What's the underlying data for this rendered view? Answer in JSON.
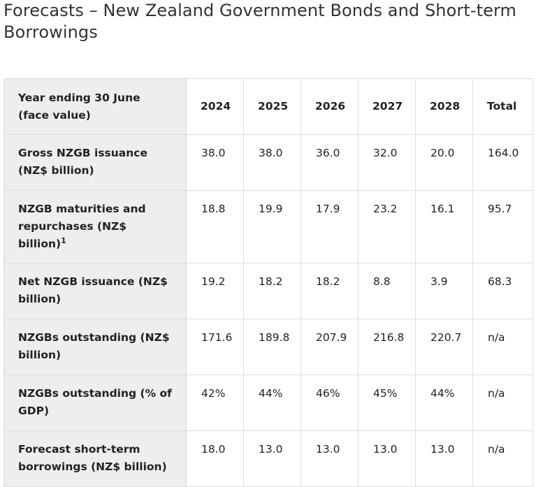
{
  "page": {
    "title": "Forecasts – New Zealand Government Bonds and Short-term Borrowings"
  },
  "table": {
    "header": {
      "label": "Year ending 30 June (face value)",
      "years": [
        "2024",
        "2025",
        "2026",
        "2027",
        "2028",
        "Total"
      ]
    },
    "rows": [
      {
        "label": "Gross NZGB issuance (NZ$ billion)",
        "footnote": "",
        "values": [
          "38.0",
          "38.0",
          "36.0",
          "32.0",
          "20.0",
          "164.0"
        ]
      },
      {
        "label": "NZGB maturities and repurchases (NZ$ billion)",
        "footnote": "1",
        "values": [
          "18.8",
          "19.9",
          "17.9",
          "23.2",
          "16.1",
          "95.7"
        ]
      },
      {
        "label": "Net NZGB issuance (NZ$ billion)",
        "footnote": "",
        "values": [
          "19.2",
          "18.2",
          "18.2",
          "8.8",
          "3.9",
          "68.3"
        ]
      },
      {
        "label": "NZGBs outstanding (NZ$ billion)",
        "footnote": "",
        "values": [
          "171.6",
          "189.8",
          "207.9",
          "216.8",
          "220.7",
          "n/a"
        ]
      },
      {
        "label": "NZGBs outstanding (% of GDP)",
        "footnote": "",
        "values": [
          "42%",
          "44%",
          "46%",
          "45%",
          "44%",
          "n/a"
        ]
      },
      {
        "label": "Forecast short-term borrowings (NZ$ billion)",
        "footnote": "",
        "values": [
          "18.0",
          "13.0",
          "13.0",
          "13.0",
          "13.0",
          "n/a"
        ]
      }
    ]
  }
}
